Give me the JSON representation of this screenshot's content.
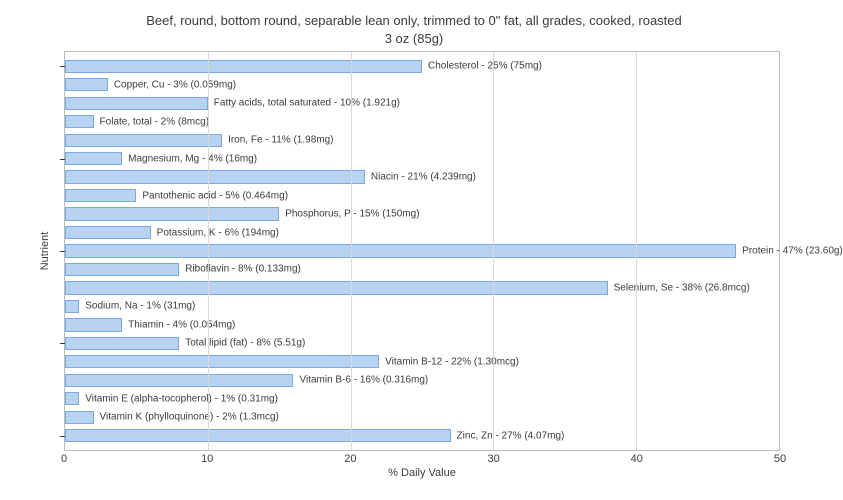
{
  "chart": {
    "type": "bar",
    "orientation": "horizontal",
    "title_line1": "Beef, round, bottom round, separable lean only, trimmed to 0\" fat, all grades, cooked, roasted",
    "title_line2": "3 oz (85g)",
    "title_fontsize": 13,
    "xlabel": "% Daily Value",
    "ylabel": "Nutrient",
    "label_fontsize": 11,
    "xlim": [
      0,
      50
    ],
    "xtick_step": 10,
    "ytick_positions": [
      0,
      5,
      10,
      15,
      20
    ],
    "bar_fill": "#b8d2f2",
    "bar_stroke": "#7aa8e0",
    "grid_color": "#d9d9d9",
    "border_color": "#bdbdbd",
    "background_color": "#ffffff",
    "text_color": "#3b3b3b",
    "tick_fontsize": 11,
    "bar_label_fontsize": 10,
    "bars": [
      {
        "label": "Cholesterol - 25% (75mg)",
        "value": 25
      },
      {
        "label": "Copper, Cu - 3% (0.059mg)",
        "value": 3
      },
      {
        "label": "Fatty acids, total saturated - 10% (1.921g)",
        "value": 10
      },
      {
        "label": "Folate, total - 2% (8mcg)",
        "value": 2
      },
      {
        "label": "Iron, Fe - 11% (1.98mg)",
        "value": 11
      },
      {
        "label": "Magnesium, Mg - 4% (16mg)",
        "value": 4
      },
      {
        "label": "Niacin - 21% (4.239mg)",
        "value": 21
      },
      {
        "label": "Pantothenic acid - 5% (0.464mg)",
        "value": 5
      },
      {
        "label": "Phosphorus, P - 15% (150mg)",
        "value": 15
      },
      {
        "label": "Potassium, K - 6% (194mg)",
        "value": 6
      },
      {
        "label": "Protein - 47% (23.60g)",
        "value": 47
      },
      {
        "label": "Riboflavin - 8% (0.133mg)",
        "value": 8
      },
      {
        "label": "Selenium, Se - 38% (26.8mcg)",
        "value": 38
      },
      {
        "label": "Sodium, Na - 1% (31mg)",
        "value": 1
      },
      {
        "label": "Thiamin - 4% (0.054mg)",
        "value": 4
      },
      {
        "label": "Total lipid (fat) - 8% (5.51g)",
        "value": 8
      },
      {
        "label": "Vitamin B-12 - 22% (1.30mcg)",
        "value": 22
      },
      {
        "label": "Vitamin B-6 - 16% (0.316mg)",
        "value": 16
      },
      {
        "label": "Vitamin E (alpha-tocopherol) - 1% (0.31mg)",
        "value": 1
      },
      {
        "label": "Vitamin K (phylloquinone) - 2% (1.3mcg)",
        "value": 2
      },
      {
        "label": "Zinc, Zn - 27% (4.07mg)",
        "value": 27
      }
    ]
  }
}
